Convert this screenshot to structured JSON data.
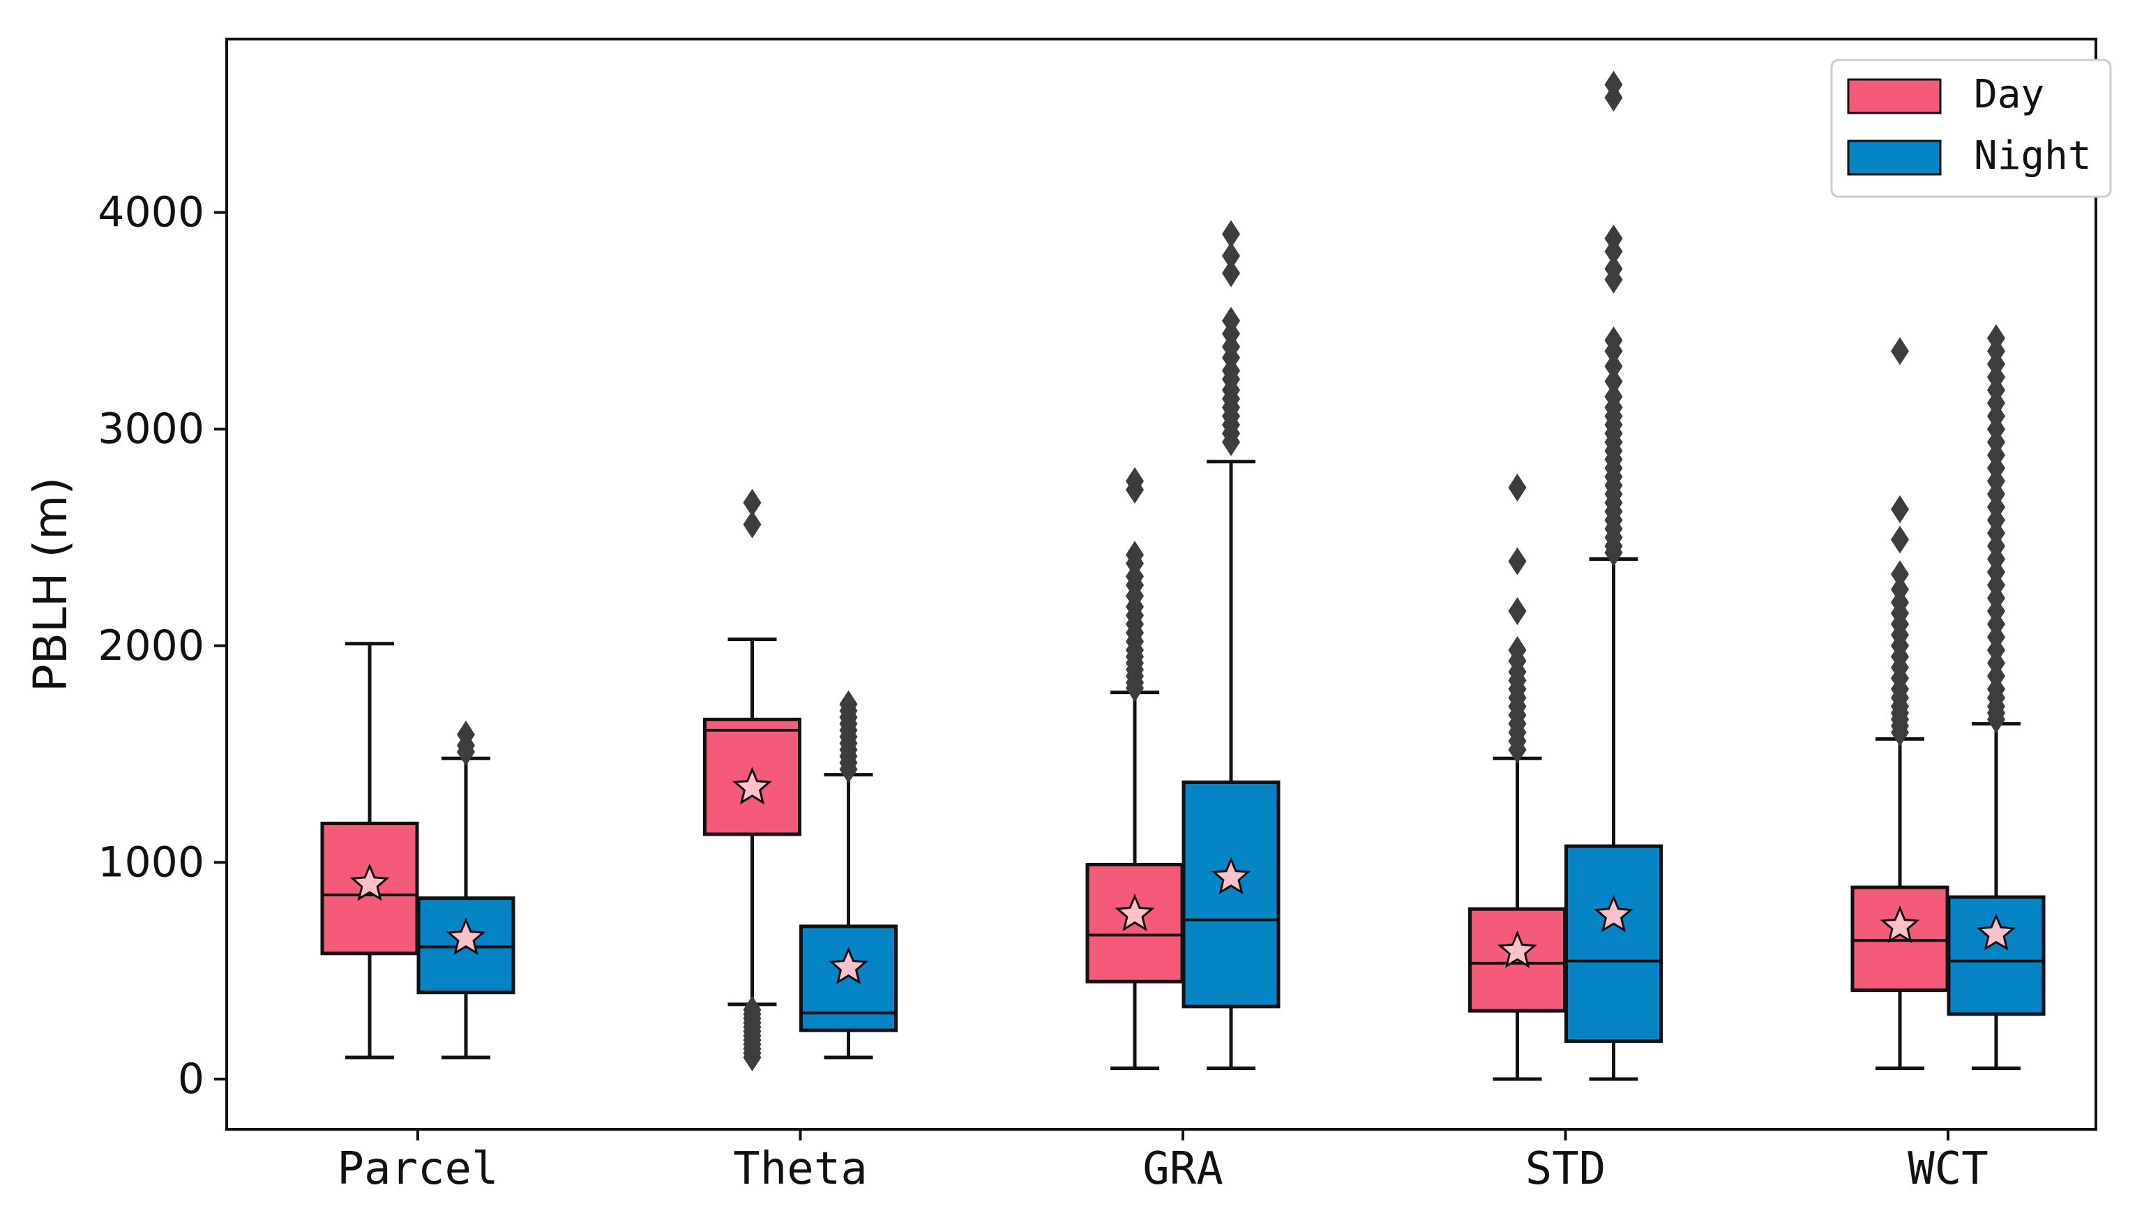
{
  "chart_data": {
    "type": "boxplot",
    "title": "",
    "xlabel": "",
    "ylabel": "PBLH (m)",
    "ylim": [
      -230,
      4800
    ],
    "yticks": [
      0,
      1000,
      2000,
      3000,
      4000
    ],
    "categories": [
      "Parcel",
      "Theta",
      "GRA",
      "STD",
      "WCT"
    ],
    "legend": {
      "position": "top-right"
    },
    "colors": {
      "Day": "#f55a78",
      "Night": "#0584c6",
      "outlier": "#3d3d3d",
      "star": "#ffc0c8"
    },
    "series": [
      {
        "name": "Day",
        "boxes": [
          {
            "category": "Parcel",
            "whislo": 100,
            "q1": 580,
            "med": 850,
            "q3": 1180,
            "whishi": 2010,
            "mean": 900,
            "outliers": []
          },
          {
            "category": "Theta",
            "whislo": 345,
            "q1": 1130,
            "med": 1610,
            "q3": 1660,
            "whishi": 2030,
            "mean": 1345,
            "outliers": [
              2660,
              2560,
              320,
              300,
              280,
              260,
              240,
              220,
              200,
              180,
              160,
              140,
              120,
              100
            ]
          },
          {
            "category": "GRA",
            "whislo": 50,
            "q1": 450,
            "med": 665,
            "q3": 990,
            "whishi": 1785,
            "mean": 760,
            "outliers": [
              2760,
              2720,
              2420,
              2380,
              2320,
              2280,
              2230,
              2180,
              2140,
              2100,
              2060,
              2020,
              1980,
              1950,
              1920,
              1890,
              1860,
              1830,
              1805
            ]
          },
          {
            "category": "STD",
            "whislo": 0,
            "q1": 315,
            "med": 535,
            "q3": 785,
            "whishi": 1480,
            "mean": 590,
            "outliers": [
              2730,
              2390,
              2160,
              1980,
              1930,
              1880,
              1840,
              1800,
              1760,
              1720,
              1680,
              1640,
              1600,
              1560,
              1520
            ]
          },
          {
            "category": "WCT",
            "whislo": 50,
            "q1": 410,
            "med": 640,
            "q3": 885,
            "whishi": 1570,
            "mean": 705,
            "outliers": [
              3360,
              2630,
              2490,
              2330,
              2260,
              2200,
              2150,
              2100,
              2050,
              2000,
              1950,
              1900,
              1850,
              1800,
              1760,
              1720,
              1690,
              1660,
              1630,
              1600
            ]
          }
        ]
      },
      {
        "name": "Night",
        "boxes": [
          {
            "category": "Parcel",
            "whislo": 100,
            "q1": 400,
            "med": 610,
            "q3": 835,
            "whishi": 1480,
            "mean": 650,
            "outliers": [
              1590,
              1540,
              1510
            ]
          },
          {
            "category": "Theta",
            "whislo": 100,
            "q1": 225,
            "med": 305,
            "q3": 705,
            "whishi": 1405,
            "mean": 515,
            "outliers": [
              1730,
              1700,
              1670,
              1640,
              1610,
              1580,
              1550,
              1520,
              1490,
              1460,
              1430
            ]
          },
          {
            "category": "GRA",
            "whislo": 50,
            "q1": 335,
            "med": 735,
            "q3": 1370,
            "whishi": 2850,
            "mean": 930,
            "outliers": [
              3900,
              3800,
              3720,
              3500,
              3440,
              3380,
              3330,
              3270,
              3230,
              3180,
              3140,
              3100,
              3060,
              3020,
              2980,
              2940
            ]
          },
          {
            "category": "STD",
            "whislo": 0,
            "q1": 175,
            "med": 545,
            "q3": 1075,
            "whishi": 2400,
            "mean": 755,
            "outliers": [
              4590,
              4530,
              3880,
              3820,
              3740,
              3690,
              3410,
              3360,
              3290,
              3220,
              3150,
              3100,
              3060,
              3020,
              2980,
              2940,
              2900,
              2860,
              2820,
              2780,
              2740,
              2700,
              2660,
              2620,
              2580,
              2540,
              2500,
              2460,
              2430
            ]
          },
          {
            "category": "WCT",
            "whislo": 50,
            "q1": 300,
            "med": 545,
            "q3": 840,
            "whishi": 1640,
            "mean": 670,
            "outliers": [
              3420,
              3360,
              3300,
              3240,
              3180,
              3120,
              3060,
              3000,
              2940,
              2880,
              2820,
              2760,
              2700,
              2640,
              2580,
              2520,
              2460,
              2400,
              2340,
              2280,
              2220,
              2160,
              2100,
              2040,
              1980,
              1920,
              1860,
              1800,
              1760,
              1720,
              1690,
              1660
            ]
          }
        ]
      }
    ]
  }
}
